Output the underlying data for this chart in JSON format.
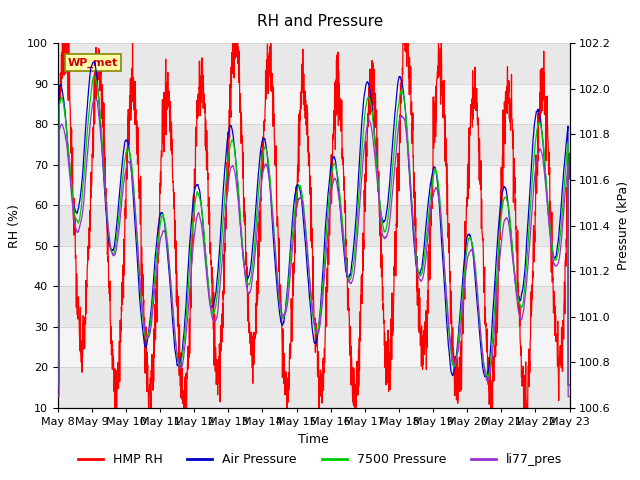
{
  "title": "RH and Pressure",
  "xlabel": "Time",
  "ylabel_left": "RH (%)",
  "ylabel_right": "Pressure (kPa)",
  "ylim_left": [
    10,
    100
  ],
  "ylim_right": [
    100.6,
    102.2
  ],
  "x_tick_labels": [
    "May 8",
    "May 9",
    "May 10",
    "May 11",
    "May 12",
    "May 13",
    "May 14",
    "May 15",
    "May 16",
    "May 17",
    "May 18",
    "May 19",
    "May 20",
    "May 21",
    "May 22",
    "May 23"
  ],
  "station_label": "WP_met",
  "legend_entries": [
    "HMP RH",
    "Air Pressure",
    "7500 Pressure",
    "li77_pres"
  ],
  "line_colors": [
    "#ff0000",
    "#0000cc",
    "#00cc00",
    "#9933cc"
  ],
  "fig_bg_color": "#ffffff",
  "plot_bg_color": "#ffffff",
  "grid_colors": [
    "#e0e0e0",
    "#f0f0f0"
  ],
  "n_points": 2160,
  "title_fontsize": 11,
  "axis_label_fontsize": 9,
  "tick_fontsize": 8,
  "legend_fontsize": 9
}
